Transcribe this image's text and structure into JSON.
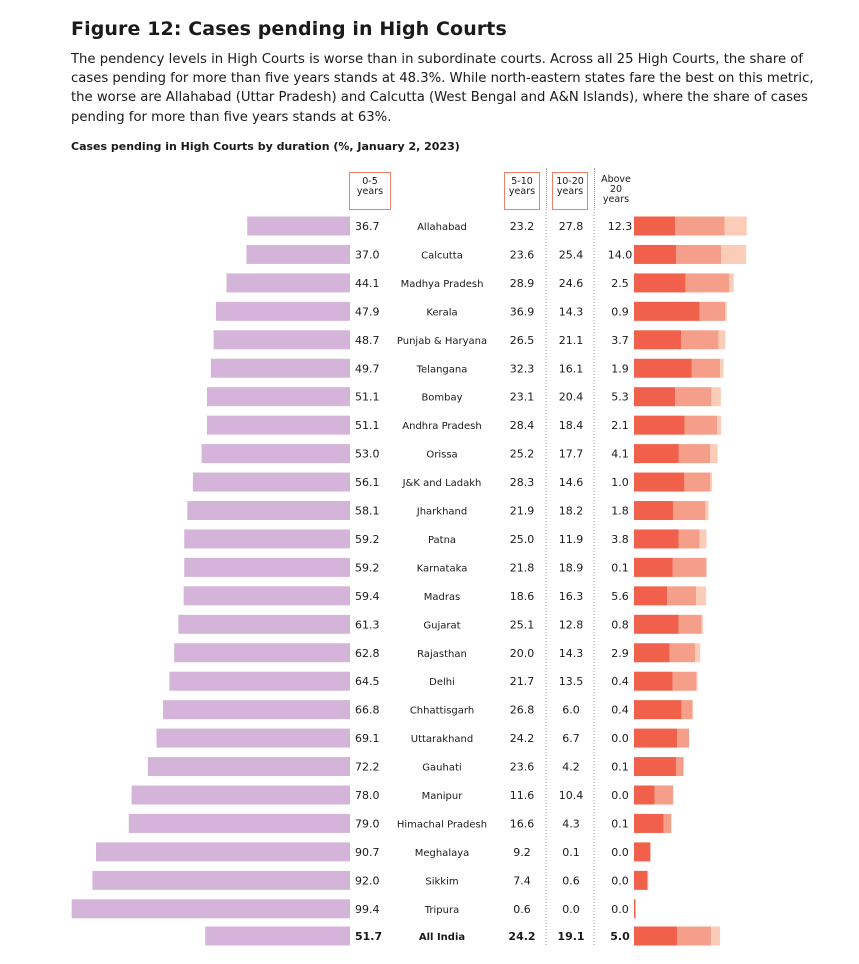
{
  "title": "Figure 12: Cases pending in High Courts",
  "description": "The pendency levels in High Courts is worse than in subordinate courts. Across all 25 High Courts, the share of cases pending for more than five years stands at 48.3%. While north-eastern states fare the best on this metric, the worse are Allahabad (Uttar Pradesh) and Calcutta (West Bengal and A&N Islands), where the share of cases pending for more than five years stands at 63%.",
  "colors": {
    "bar_0_5": "#d4b4d8",
    "bar_5_10": "#f0604a",
    "bar_10_20": "#f59f8a",
    "bar_above20": "#fbcdb9",
    "header_border": "#f07f6a"
  },
  "chart_data": {
    "type": "bar",
    "title": "Cases pending in High Courts by duration (%, January 2, 2023)",
    "columns": [
      {
        "key": "y0_5",
        "label_lines": [
          "0-5",
          "years"
        ]
      },
      {
        "key": "y5_10",
        "label_lines": [
          "5-10",
          "years"
        ]
      },
      {
        "key": "y10_20",
        "label_lines": [
          "10-20",
          "years"
        ]
      },
      {
        "key": "above20",
        "label_lines": [
          "Above",
          "20",
          "years"
        ]
      }
    ],
    "rows": [
      {
        "court": "Allahabad",
        "y0_5": "36.7",
        "y5_10": "23.2",
        "y10_20": "27.8",
        "above20": "12.3"
      },
      {
        "court": "Calcutta",
        "y0_5": "37.0",
        "y5_10": "23.6",
        "y10_20": "25.4",
        "above20": "14.0"
      },
      {
        "court": "Madhya Pradesh",
        "y0_5": "44.1",
        "y5_10": "28.9",
        "y10_20": "24.6",
        "above20": "2.5"
      },
      {
        "court": "Kerala",
        "y0_5": "47.9",
        "y5_10": "36.9",
        "y10_20": "14.3",
        "above20": "0.9"
      },
      {
        "court": "Punjab & Haryana",
        "y0_5": "48.7",
        "y5_10": "26.5",
        "y10_20": "21.1",
        "above20": "3.7"
      },
      {
        "court": "Telangana",
        "y0_5": "49.7",
        "y5_10": "32.3",
        "y10_20": "16.1",
        "above20": "1.9"
      },
      {
        "court": "Bombay",
        "y0_5": "51.1",
        "y5_10": "23.1",
        "y10_20": "20.4",
        "above20": "5.3"
      },
      {
        "court": "Andhra Pradesh",
        "y0_5": "51.1",
        "y5_10": "28.4",
        "y10_20": "18.4",
        "above20": "2.1"
      },
      {
        "court": "Orissa",
        "y0_5": "53.0",
        "y5_10": "25.2",
        "y10_20": "17.7",
        "above20": "4.1"
      },
      {
        "court": "J&K and Ladakh",
        "y0_5": "56.1",
        "y5_10": "28.3",
        "y10_20": "14.6",
        "above20": "1.0"
      },
      {
        "court": "Jharkhand",
        "y0_5": "58.1",
        "y5_10": "21.9",
        "y10_20": "18.2",
        "above20": "1.8"
      },
      {
        "court": "Patna",
        "y0_5": "59.2",
        "y5_10": "25.0",
        "y10_20": "11.9",
        "above20": "3.8"
      },
      {
        "court": "Karnataka",
        "y0_5": "59.2",
        "y5_10": "21.8",
        "y10_20": "18.9",
        "above20": "0.1"
      },
      {
        "court": "Madras",
        "y0_5": "59.4",
        "y5_10": "18.6",
        "y10_20": "16.3",
        "above20": "5.6"
      },
      {
        "court": "Gujarat",
        "y0_5": "61.3",
        "y5_10": "25.1",
        "y10_20": "12.8",
        "above20": "0.8"
      },
      {
        "court": "Rajasthan",
        "y0_5": "62.8",
        "y5_10": "20.0",
        "y10_20": "14.3",
        "above20": "2.9"
      },
      {
        "court": "Delhi",
        "y0_5": "64.5",
        "y5_10": "21.7",
        "y10_20": "13.5",
        "above20": "0.4"
      },
      {
        "court": "Chhattisgarh",
        "y0_5": "66.8",
        "y5_10": "26.8",
        "y10_20": "6.0",
        "above20": "0.4"
      },
      {
        "court": "Uttarakhand",
        "y0_5": "69.1",
        "y5_10": "24.2",
        "y10_20": "6.7",
        "above20": "0.0"
      },
      {
        "court": "Gauhati",
        "y0_5": "72.2",
        "y5_10": "23.6",
        "y10_20": "4.2",
        "above20": "0.1"
      },
      {
        "court": "Manipur",
        "y0_5": "78.0",
        "y5_10": "11.6",
        "y10_20": "10.4",
        "above20": "0.0"
      },
      {
        "court": "Himachal Pradesh",
        "y0_5": "79.0",
        "y5_10": "16.6",
        "y10_20": "4.3",
        "above20": "0.1"
      },
      {
        "court": "Meghalaya",
        "y0_5": "90.7",
        "y5_10": "9.2",
        "y10_20": "0.1",
        "above20": "0.0"
      },
      {
        "court": "Sikkim",
        "y0_5": "92.0",
        "y5_10": "7.4",
        "y10_20": "0.6",
        "above20": "0.0"
      },
      {
        "court": "Tripura",
        "y0_5": "99.4",
        "y5_10": "0.6",
        "y10_20": "0.0",
        "above20": "0.0"
      }
    ],
    "total": {
      "court": "All India",
      "y0_5": "51.7",
      "y5_10": "24.2",
      "y10_20": "19.1",
      "above20": "5.0"
    }
  }
}
